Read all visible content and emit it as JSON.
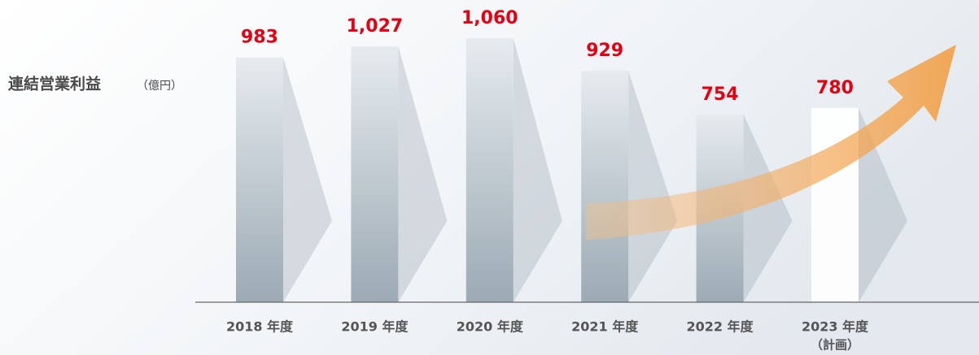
{
  "chart_data": {
    "type": "bar",
    "title": "連結営業利益",
    "unit": "（億円）",
    "categories": [
      "2018 年度",
      "2019 年度",
      "2020 年度",
      "2021 年度",
      "2022 年度",
      "2023 年度"
    ],
    "category_notes": [
      null,
      null,
      null,
      null,
      null,
      "（計画）"
    ],
    "values": [
      983,
      1027,
      1060,
      929,
      754,
      780
    ],
    "value_labels": [
      "983",
      "1,027",
      "1,060",
      "929",
      "754",
      "780"
    ],
    "colors": [
      "#b3bec6",
      "#b3bec6",
      "#b3bec6",
      "#b3bec6",
      "#b3bec6",
      "#ffffff"
    ],
    "label_color": "#e60012"
  }
}
